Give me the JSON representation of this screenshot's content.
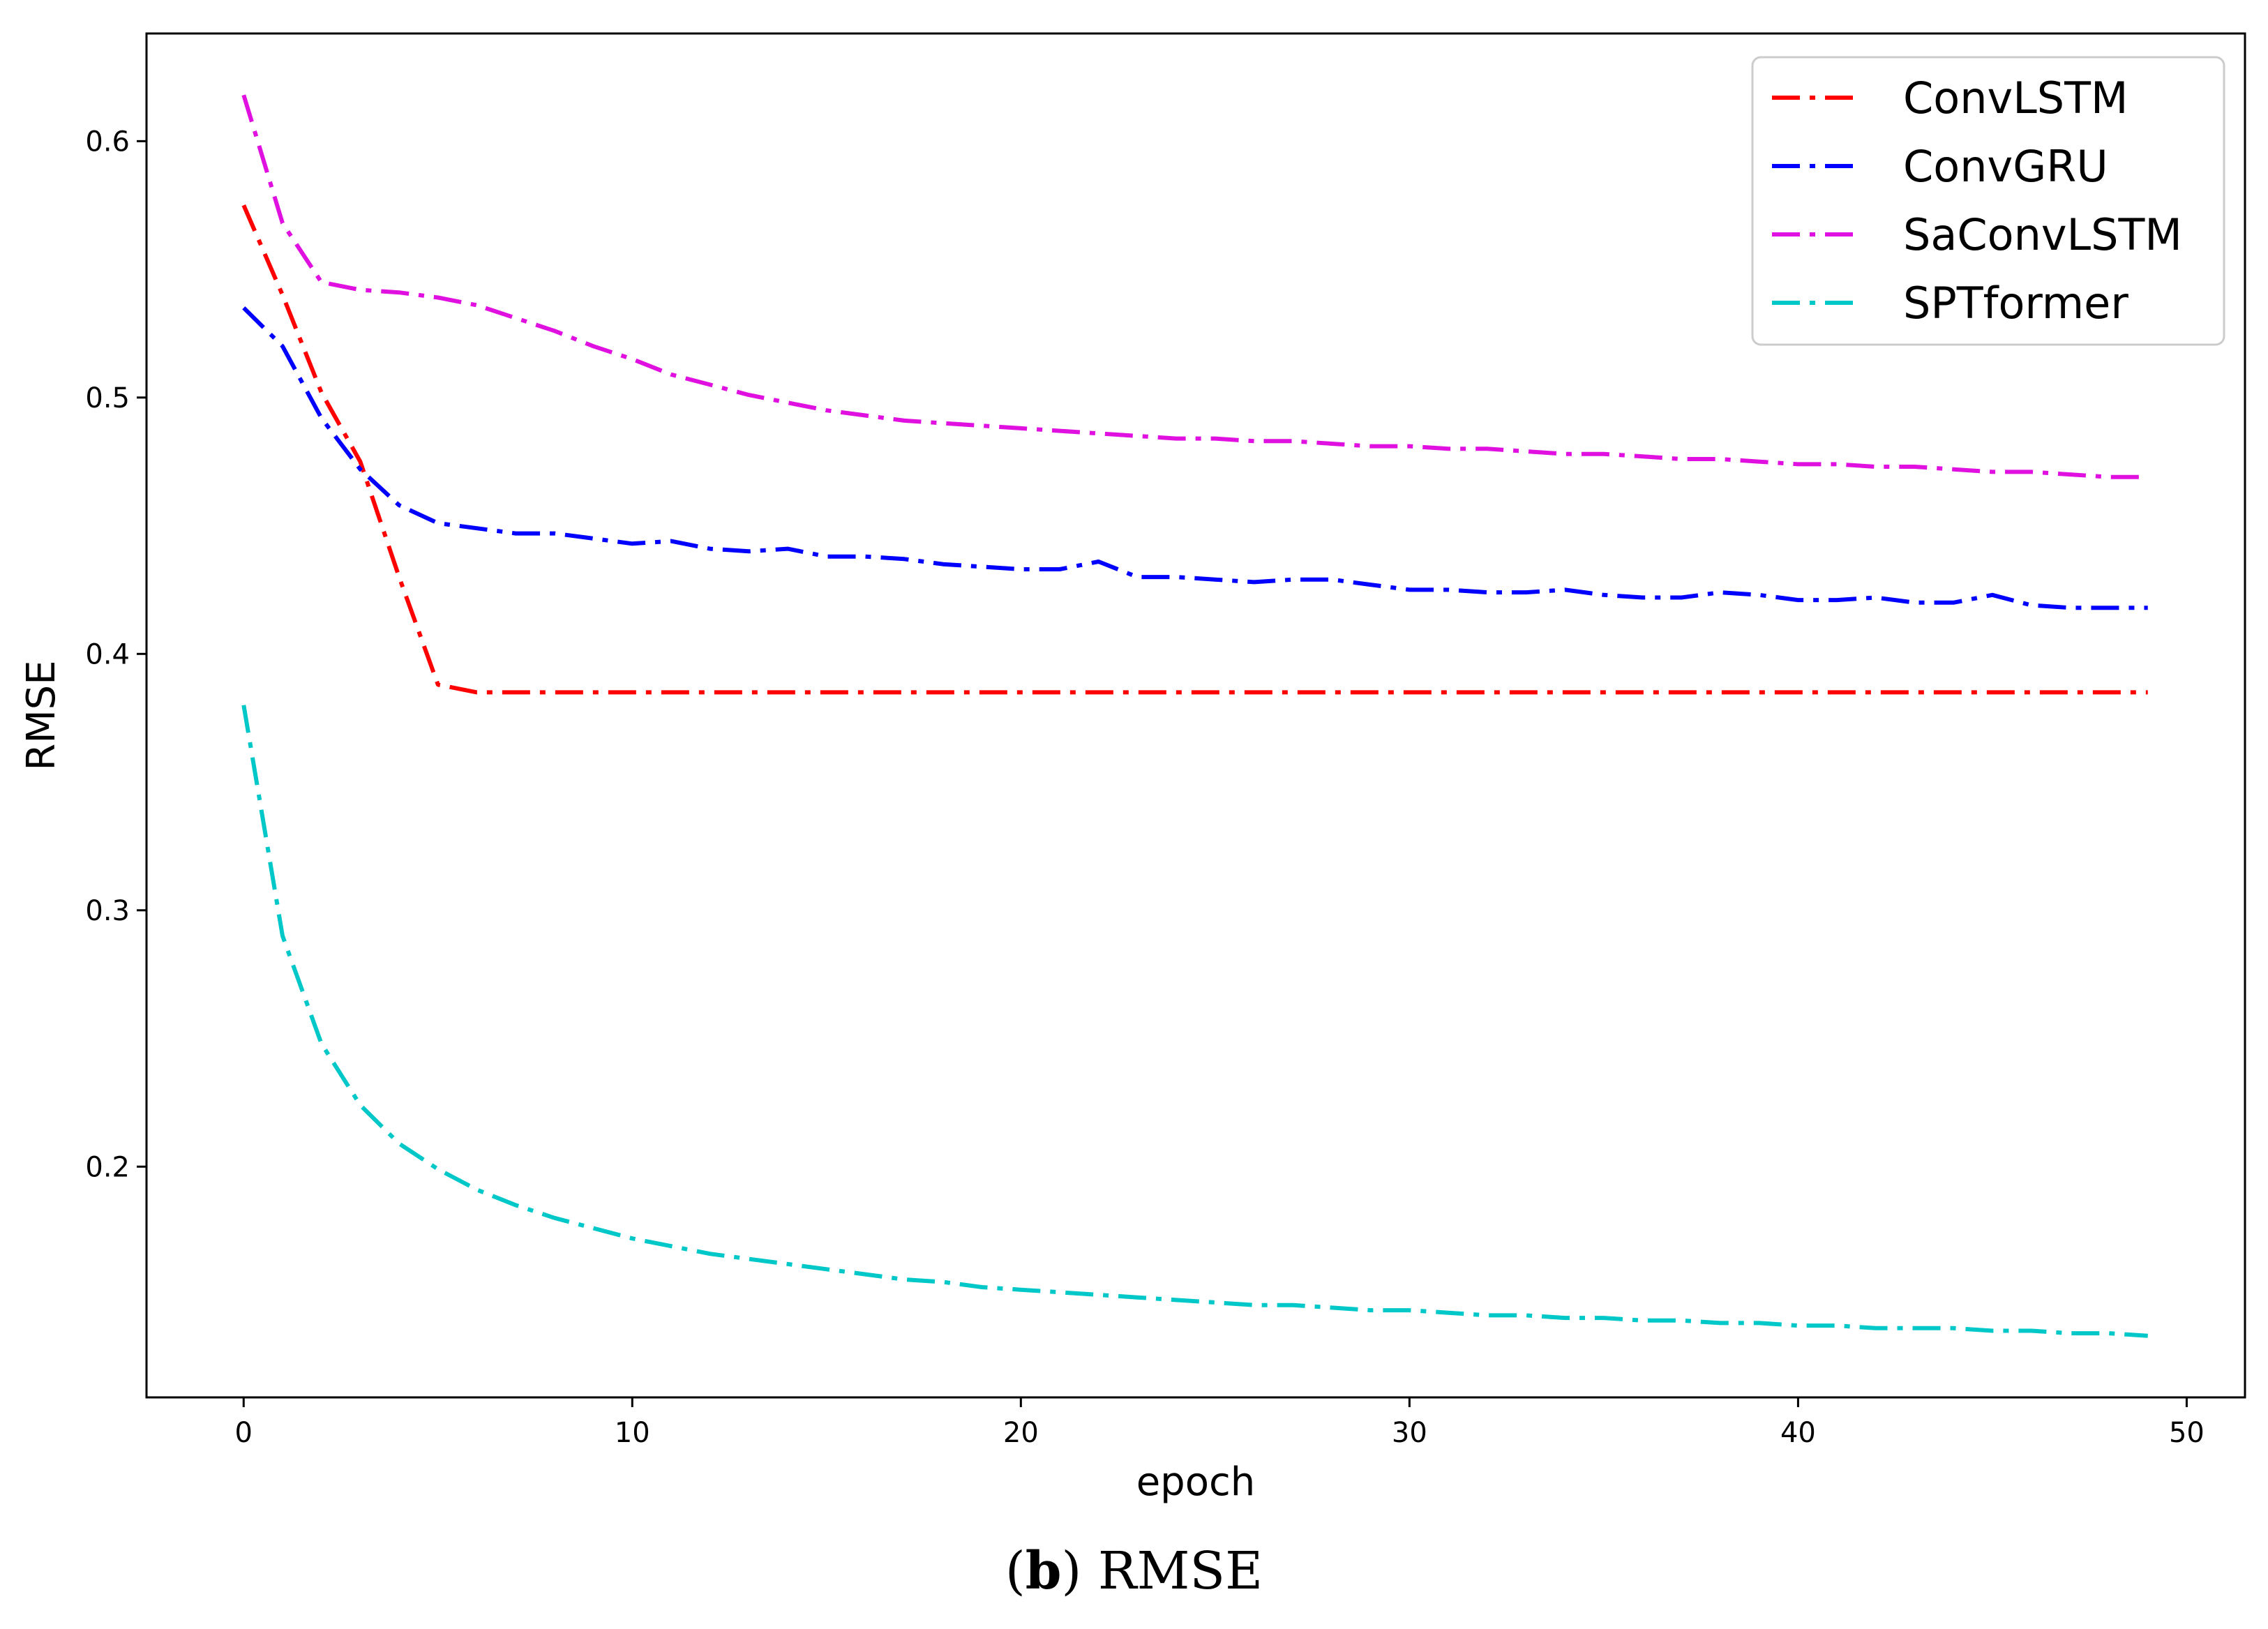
{
  "caption": {
    "open": "(",
    "letter": "b",
    "close": ") RMSE"
  },
  "chart_data": {
    "type": "line",
    "title": "",
    "xlabel": "epoch",
    "ylabel": "RMSE",
    "xlim": [
      -2.5,
      51.5
    ],
    "ylim": [
      0.11,
      0.642
    ],
    "xticks": [
      0,
      10,
      20,
      30,
      40,
      50
    ],
    "yticks": [
      0.2,
      0.3,
      0.4,
      0.5,
      0.6
    ],
    "grid": false,
    "legend_position": "top-right",
    "line_style": "dash-dot",
    "series": [
      {
        "name": "ConvLSTM",
        "color": "#ff0000",
        "x": [
          0,
          1,
          2,
          3,
          4,
          5,
          6,
          7,
          8,
          9,
          10,
          11,
          12,
          13,
          14,
          15,
          16,
          17,
          18,
          19,
          20,
          21,
          22,
          23,
          24,
          25,
          26,
          27,
          28,
          29,
          30,
          31,
          32,
          33,
          34,
          35,
          36,
          37,
          38,
          39,
          40,
          41,
          42,
          43,
          44,
          45,
          46,
          47,
          48,
          49
        ],
        "values": [
          0.575,
          0.54,
          0.502,
          0.475,
          0.43,
          0.388,
          0.385,
          0.385,
          0.385,
          0.385,
          0.385,
          0.385,
          0.385,
          0.385,
          0.385,
          0.385,
          0.385,
          0.385,
          0.385,
          0.385,
          0.385,
          0.385,
          0.385,
          0.385,
          0.385,
          0.385,
          0.385,
          0.385,
          0.385,
          0.385,
          0.385,
          0.385,
          0.385,
          0.385,
          0.385,
          0.385,
          0.385,
          0.385,
          0.385,
          0.385,
          0.385,
          0.385,
          0.385,
          0.385,
          0.385,
          0.385,
          0.385,
          0.385,
          0.385,
          0.385
        ]
      },
      {
        "name": "ConvGRU",
        "color": "#0000ff",
        "x": [
          0,
          1,
          2,
          3,
          4,
          5,
          6,
          7,
          8,
          9,
          10,
          11,
          12,
          13,
          14,
          15,
          16,
          17,
          18,
          19,
          20,
          21,
          22,
          23,
          24,
          25,
          26,
          27,
          28,
          29,
          30,
          31,
          32,
          33,
          34,
          35,
          36,
          37,
          38,
          39,
          40,
          41,
          42,
          43,
          44,
          45,
          46,
          47,
          48,
          49
        ],
        "values": [
          0.535,
          0.52,
          0.492,
          0.472,
          0.458,
          0.451,
          0.449,
          0.447,
          0.447,
          0.445,
          0.443,
          0.444,
          0.441,
          0.44,
          0.441,
          0.438,
          0.438,
          0.437,
          0.435,
          0.434,
          0.433,
          0.433,
          0.436,
          0.43,
          0.43,
          0.429,
          0.428,
          0.429,
          0.429,
          0.427,
          0.425,
          0.425,
          0.424,
          0.424,
          0.425,
          0.423,
          0.422,
          0.422,
          0.424,
          0.423,
          0.421,
          0.421,
          0.422,
          0.42,
          0.42,
          0.423,
          0.419,
          0.418,
          0.418,
          0.418
        ]
      },
      {
        "name": "SaConvLSTM",
        "color": "#e010e0",
        "x": [
          0,
          1,
          2,
          3,
          4,
          5,
          6,
          7,
          8,
          9,
          10,
          11,
          12,
          13,
          14,
          15,
          16,
          17,
          18,
          19,
          20,
          21,
          22,
          23,
          24,
          25,
          26,
          27,
          28,
          29,
          30,
          31,
          32,
          33,
          34,
          35,
          36,
          37,
          38,
          39,
          40,
          41,
          42,
          43,
          44,
          45,
          46,
          47,
          48,
          49
        ],
        "values": [
          0.618,
          0.568,
          0.545,
          0.542,
          0.541,
          0.539,
          0.536,
          0.531,
          0.526,
          0.52,
          0.515,
          0.509,
          0.505,
          0.501,
          0.498,
          0.495,
          0.493,
          0.491,
          0.49,
          0.489,
          0.488,
          0.487,
          0.486,
          0.485,
          0.484,
          0.484,
          0.483,
          0.483,
          0.482,
          0.481,
          0.481,
          0.48,
          0.48,
          0.479,
          0.478,
          0.478,
          0.477,
          0.476,
          0.476,
          0.475,
          0.474,
          0.474,
          0.473,
          0.473,
          0.472,
          0.471,
          0.471,
          0.47,
          0.469,
          0.469
        ]
      },
      {
        "name": "SPTformer",
        "color": "#00c8c8",
        "x": [
          0,
          1,
          2,
          3,
          4,
          5,
          6,
          7,
          8,
          9,
          10,
          11,
          12,
          13,
          14,
          15,
          16,
          17,
          18,
          19,
          20,
          21,
          22,
          23,
          24,
          25,
          26,
          27,
          28,
          29,
          30,
          31,
          32,
          33,
          34,
          35,
          36,
          37,
          38,
          39,
          40,
          41,
          42,
          43,
          44,
          45,
          46,
          47,
          48,
          49
        ],
        "values": [
          0.38,
          0.29,
          0.248,
          0.224,
          0.209,
          0.199,
          0.191,
          0.185,
          0.18,
          0.176,
          0.172,
          0.169,
          0.166,
          0.164,
          0.162,
          0.16,
          0.158,
          0.156,
          0.155,
          0.153,
          0.152,
          0.151,
          0.15,
          0.149,
          0.148,
          0.147,
          0.146,
          0.146,
          0.145,
          0.144,
          0.144,
          0.143,
          0.142,
          0.142,
          0.141,
          0.141,
          0.14,
          0.14,
          0.139,
          0.139,
          0.138,
          0.138,
          0.137,
          0.137,
          0.137,
          0.136,
          0.136,
          0.135,
          0.135,
          0.134
        ]
      }
    ]
  }
}
